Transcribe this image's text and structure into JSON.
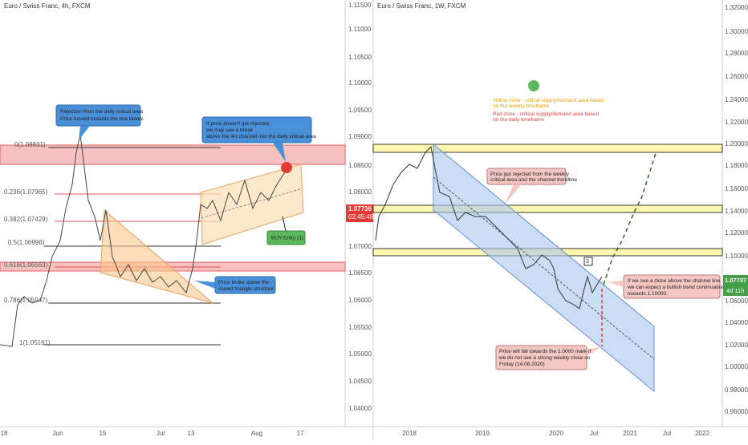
{
  "left_panel": {
    "title": "Euro / Swiss Franc, 4h, FXCM",
    "y_axis": [
      "1.11500",
      "1.11000",
      "1.10500",
      "1.10000",
      "1.09500",
      "1.09000",
      "1.08500",
      "1.08000",
      "1.07000",
      "1.06500",
      "1.06000",
      "1.05500",
      "1.05000",
      "1.04500",
      "1.04000"
    ],
    "price_badge": "1.07736",
    "countdown": "02:45:48",
    "x_axis": [
      "18",
      "Jun",
      "15",
      "Jul",
      "13",
      "Aug",
      "17"
    ],
    "fib_levels": [
      "0(1.08831)",
      "0.236(1.07965)",
      "0.382(1.07429)",
      "0.5(1.06996)",
      "0.618(1.06563)",
      "0.786(1.05947)",
      "1(1.05161)"
    ],
    "annotations": [
      {
        "lines": [
          "Rejection from the daily critical area",
          "Price moved towards the one below."
        ]
      },
      {
        "lines": [
          "If price doesn't get rejected,",
          "we may see a break",
          "above the 4H channel into the daily critical area"
        ]
      },
      {
        "lines": [
          "Price broke above the",
          "closed triangle structure"
        ]
      },
      {
        "lines": [
          "BUY Entry (1)"
        ]
      }
    ]
  },
  "right_panel": {
    "title": "Euro / Swiss Franc, 1W, FXCM",
    "y_axis": [
      "1.32000",
      "1.30000",
      "1.28000",
      "1.26000",
      "1.24000",
      "1.22000",
      "1.20000",
      "1.18000",
      "1.16000",
      "1.14000",
      "1.12000",
      "1.10000",
      "1.06000",
      "1.04000",
      "1.02000",
      "1.00000",
      "0.98000",
      "0.96000"
    ],
    "price_badge": "1.07737",
    "countdown": "4d 11h",
    "x_axis": [
      "2018",
      "2019",
      "2020",
      "Jul",
      "2021",
      "Jul",
      "2022"
    ],
    "legend": [
      {
        "lines": [
          "Yellow zone - critical supply/demand area based",
          "on the weekly timeframe"
        ]
      },
      {
        "lines": [
          "Red zone - critical supply/demand area based",
          "on the daily timeframe"
        ]
      }
    ],
    "marker": "3",
    "annotations": [
      {
        "lines": [
          "Price got rejected from the weekly",
          "critical area and the channel trendline"
        ]
      },
      {
        "lines": [
          "If we see a close above the channel line",
          "we can expect a bullish trend continuation",
          "towards 1.10000."
        ]
      },
      {
        "lines": [
          "Price will fall towards the 1.0000 mark if",
          "we do not see a strong weekly close on",
          "Friday (14.08.2020)"
        ]
      }
    ]
  }
}
